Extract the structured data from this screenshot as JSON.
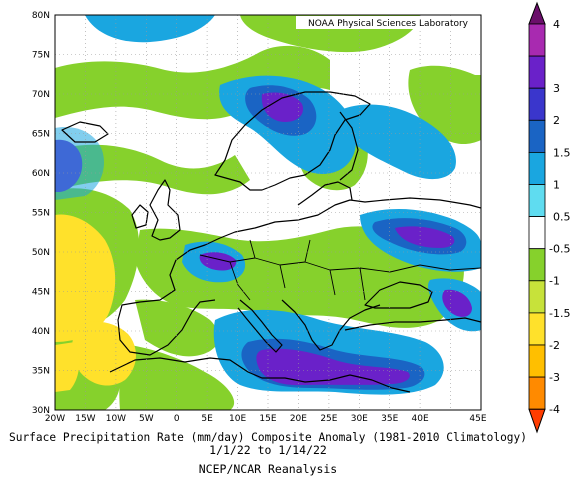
{
  "map": {
    "title": "Surface Precipitation Rate (mm/day) Composite Anomaly (1981-2010 Climatology)",
    "date_range": "1/1/22 to 1/14/22",
    "dataset": "NCEP/NCAR Reanalysis",
    "credit": "NOAA Physical Sciences Laboratory",
    "region": "Europe and North Africa",
    "lat_labels": [
      "80N",
      "75N",
      "70N",
      "65N",
      "60N",
      "55N",
      "50N",
      "45N",
      "40N",
      "35N",
      "30N"
    ],
    "lon_labels": [
      "20W",
      "15W",
      "10W",
      "5W",
      "0",
      "5E",
      "10E",
      "15E",
      "20E",
      "25E",
      "30E",
      "35E",
      "40E",
      "45E"
    ]
  },
  "colorbar": {
    "labels": [
      "4",
      "3",
      "2",
      "1.5",
      "1",
      "0.5",
      "-0.5",
      "-1",
      "-1.5",
      "-2",
      "-3",
      "-4"
    ],
    "colors": [
      "#6b0f6b",
      "#a82ab0",
      "#6a21c9",
      "#3a36cc",
      "#1a64c4",
      "#1aa6e0",
      "#5fdcf0",
      "#ffffff",
      "#86d12c",
      "#c7e23a",
      "#ffe12b",
      "#ffbf00",
      "#ff8a00",
      "#ff3c00"
    ]
  },
  "colors": {
    "ocean_bg": "#ffffff",
    "green": "#86d12c",
    "yellow": "#ffe12b",
    "cyan": "#1aa6e0",
    "blue": "#1a64c4",
    "purple": "#6a21c9",
    "coast": "#000000"
  }
}
